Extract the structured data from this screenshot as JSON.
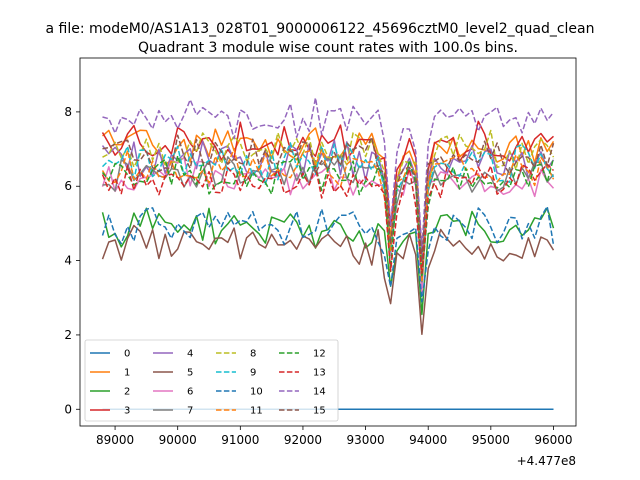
{
  "figure": {
    "suptitle": "a file: modeM0/AS1A13_028T01_9000006122_45696cztM0_level2_quad_clean",
    "offset_text": "+4.477e8"
  },
  "chart_data": {
    "type": "line",
    "title": "Quadrant 3 module wise count rates with 100.0s bins.",
    "xlabel": "",
    "ylabel": "",
    "x_offset": 447700000,
    "x_range": [
      88800,
      96000
    ],
    "xlim": [
      88440,
      96360
    ],
    "ylim": [
      -0.45,
      9.45
    ],
    "xticks": [
      89000,
      90000,
      91000,
      92000,
      93000,
      94000,
      95000,
      96000
    ],
    "xtick_labels": [
      "89000",
      "90000",
      "91000",
      "92000",
      "93000",
      "94000",
      "95000",
      "96000"
    ],
    "yticks": [
      0,
      2,
      4,
      6,
      8
    ],
    "ytick_labels": [
      "0",
      "2",
      "4",
      "6",
      "8"
    ],
    "grid": false,
    "legend_position": "lower-left",
    "legend_columns": 4,
    "dips": [
      {
        "x": 93400,
        "depth": 0.6
      },
      {
        "x": 93900,
        "depth": 0.55
      }
    ],
    "series": [
      {
        "name": "0",
        "color": "#1f77b4",
        "style": "solid",
        "level": 0.0
      },
      {
        "name": "1",
        "color": "#ff7f0e",
        "style": "solid",
        "level": 7.1
      },
      {
        "name": "2",
        "color": "#2ca02c",
        "style": "solid",
        "level": 4.9
      },
      {
        "name": "3",
        "color": "#d62728",
        "style": "solid",
        "level": 7.2
      },
      {
        "name": "4",
        "color": "#9467bd",
        "style": "solid",
        "level": 6.7
      },
      {
        "name": "5",
        "color": "#8c564b",
        "style": "solid",
        "level": 4.4
      },
      {
        "name": "6",
        "color": "#e377c2",
        "style": "solid",
        "level": 6.2
      },
      {
        "name": "7",
        "color": "#7f7f7f",
        "style": "solid",
        "level": 6.4
      },
      {
        "name": "8",
        "color": "#bcbd22",
        "style": "dashed",
        "level": 7.0
      },
      {
        "name": "9",
        "color": "#17becf",
        "style": "dashed",
        "level": 6.6
      },
      {
        "name": "10",
        "color": "#1f77b4",
        "style": "dashed",
        "level": 4.9
      },
      {
        "name": "11",
        "color": "#ff7f0e",
        "style": "dashed",
        "level": 6.5
      },
      {
        "name": "12",
        "color": "#2ca02c",
        "style": "dashed",
        "level": 6.3
      },
      {
        "name": "13",
        "color": "#d62728",
        "style": "dashed",
        "level": 6.1
      },
      {
        "name": "14",
        "color": "#9467bd",
        "style": "dashed",
        "level": 7.8
      },
      {
        "name": "15",
        "color": "#8c564b",
        "style": "dashed",
        "level": 6.8
      }
    ]
  }
}
